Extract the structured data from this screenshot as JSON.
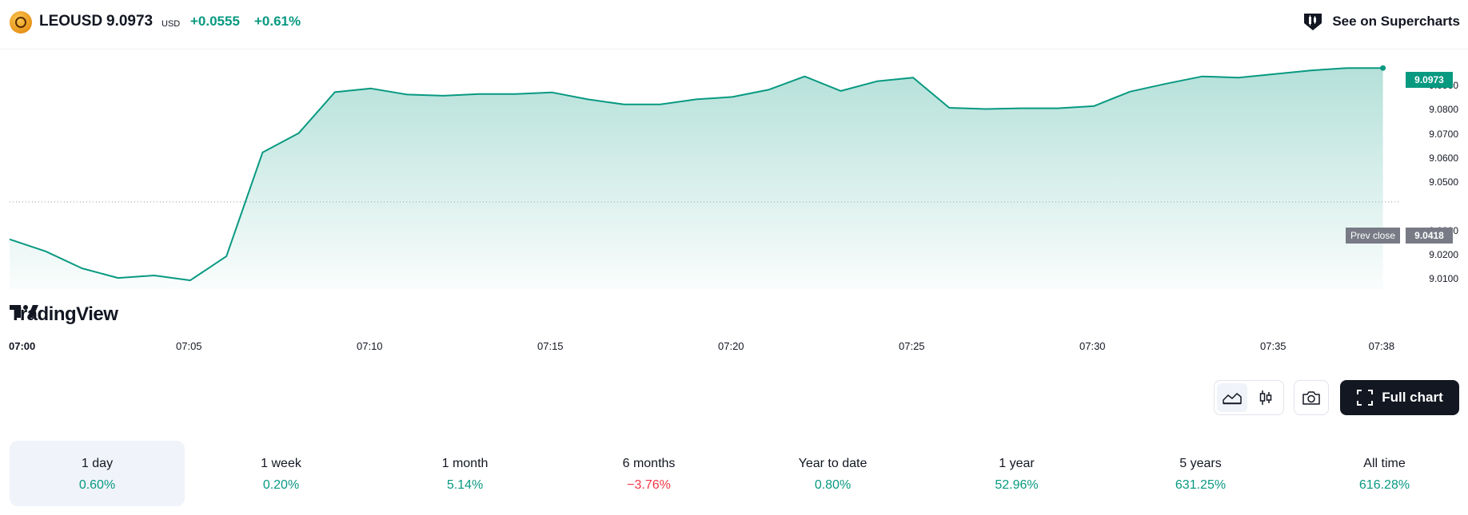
{
  "header": {
    "symbol": "LEOUSD",
    "price": "9.0973",
    "currency": "USD",
    "change_abs": "+0.0555",
    "change_pct": "+0.61%",
    "supercharts_label": "See on Supercharts"
  },
  "chart": {
    "last_price_tag": "9.0973",
    "prev_close_label": "Prev close",
    "prev_close_value": "9.0418",
    "watermark": "TradingView",
    "line_color": "#089981"
  },
  "chart_data": {
    "type": "area",
    "title": "",
    "xlabel": "",
    "ylabel": "",
    "x_ticks": [
      "07:00",
      "07:05",
      "07:10",
      "07:15",
      "07:20",
      "07:25",
      "07:30",
      "07:35",
      "07:38"
    ],
    "y_ticks": [
      "9.0100",
      "9.0200",
      "9.0300",
      "9.0500",
      "9.0600",
      "9.0700",
      "9.0800",
      "9.0900"
    ],
    "ylim": [
      9.009,
      9.1
    ],
    "x_minutes_after_0700": [
      0,
      1,
      2,
      3,
      4,
      5,
      6,
      7,
      8,
      9,
      10,
      11,
      12,
      13,
      14,
      15,
      16,
      17,
      18,
      19,
      20,
      21,
      22,
      23,
      24,
      25,
      26,
      27,
      28,
      29,
      30,
      31,
      32,
      33,
      34,
      35,
      36,
      37,
      38
    ],
    "values": [
      9.0263,
      9.0213,
      9.0143,
      9.0103,
      9.0113,
      9.0093,
      9.0193,
      9.0623,
      9.0703,
      9.0873,
      9.0888,
      9.0863,
      9.0858,
      9.0865,
      9.0865,
      9.0872,
      9.0843,
      9.0822,
      9.0822,
      9.0843,
      9.0853,
      9.0883,
      9.0938,
      9.0878,
      9.0918,
      9.0933,
      9.0808,
      9.0803,
      9.0806,
      9.0806,
      9.0815,
      9.0875,
      9.0908,
      9.0938,
      9.0933,
      9.0948,
      9.0963,
      9.0973,
      9.0973
    ],
    "previous_close": 9.0418,
    "grid": false,
    "legend": "none"
  },
  "toolbar": {
    "area_icon": "area-chart-icon",
    "candles_icon": "candlestick-icon",
    "snapshot_icon": "camera-icon",
    "full_chart_label": "Full chart"
  },
  "periods": [
    {
      "label": "1 day",
      "value": "0.60%",
      "sign": "pos",
      "active": true
    },
    {
      "label": "1 week",
      "value": "0.20%",
      "sign": "pos",
      "active": false
    },
    {
      "label": "1 month",
      "value": "5.14%",
      "sign": "pos",
      "active": false
    },
    {
      "label": "6 months",
      "value": "−3.76%",
      "sign": "neg",
      "active": false
    },
    {
      "label": "Year to date",
      "value": "0.80%",
      "sign": "pos",
      "active": false
    },
    {
      "label": "1 year",
      "value": "52.96%",
      "sign": "pos",
      "active": false
    },
    {
      "label": "5 years",
      "value": "631.25%",
      "sign": "pos",
      "active": false
    },
    {
      "label": "All time",
      "value": "616.28%",
      "sign": "pos",
      "active": false
    }
  ]
}
